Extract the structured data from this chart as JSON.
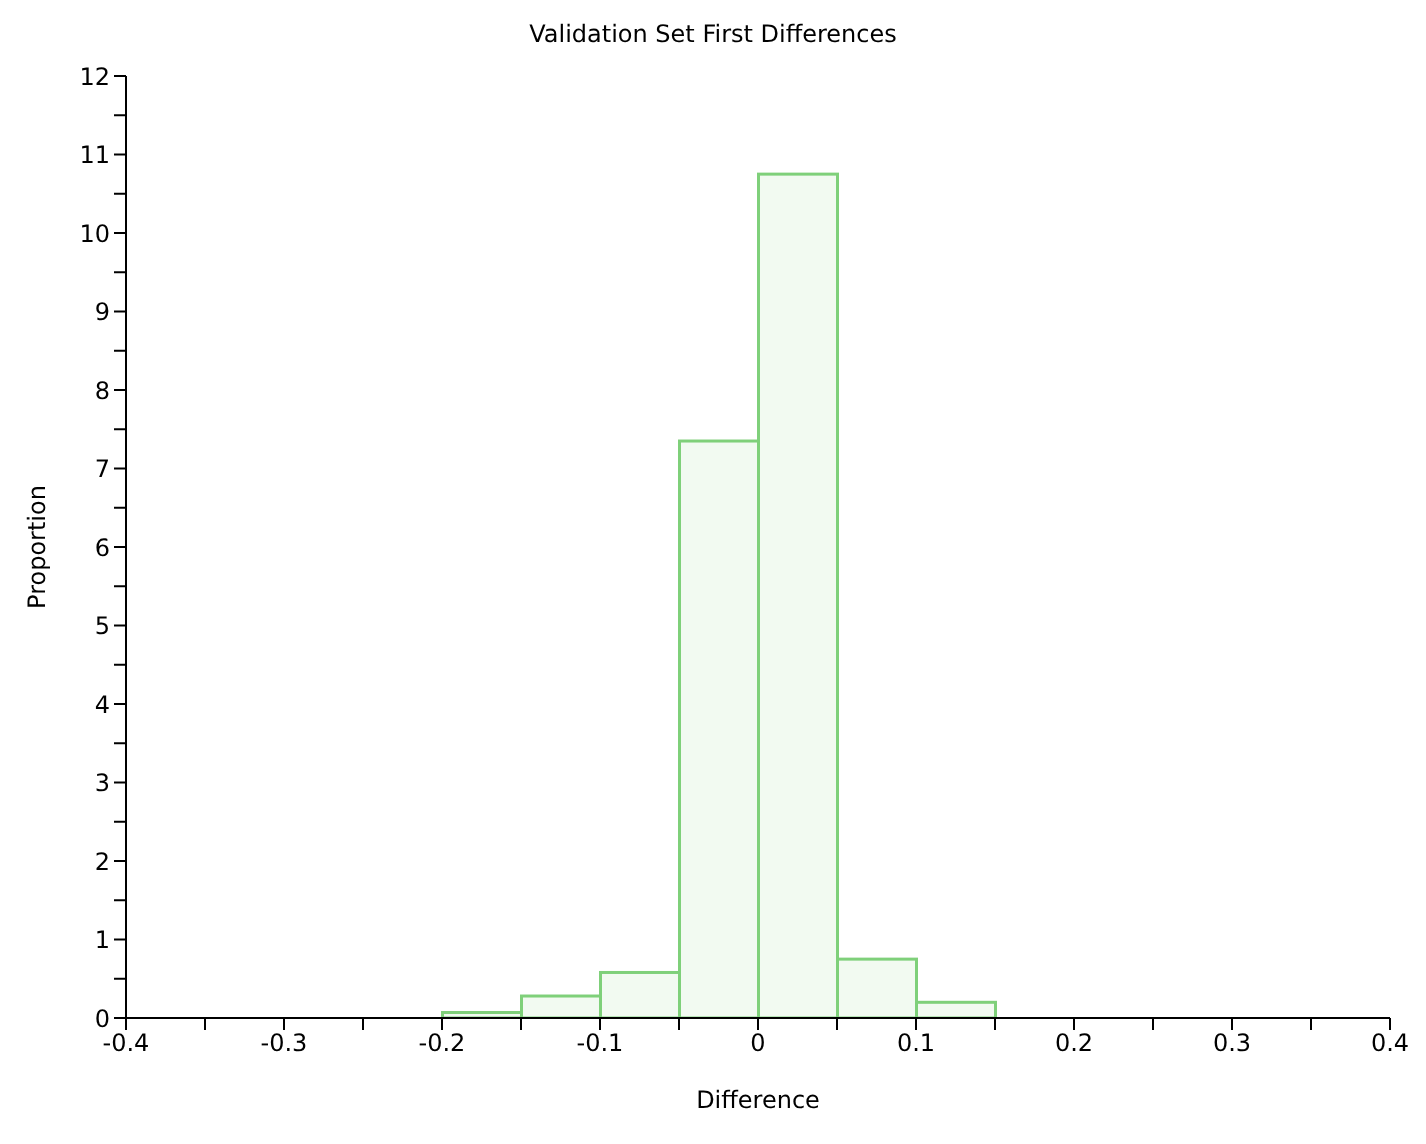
{
  "chart_data": {
    "type": "histogram",
    "title": "Validation Set First Differences",
    "xlabel": "Difference",
    "ylabel": "Proportion",
    "bins": [
      -0.2,
      -0.15,
      -0.1,
      -0.05,
      0,
      0.05,
      0.1,
      0.15
    ],
    "values": [
      0.07,
      0.28,
      0.58,
      7.35,
      10.75,
      0.75,
      0.2
    ],
    "color": "#7fd07a",
    "xlim": [
      -0.4,
      0.4
    ],
    "xticks": [
      -0.4,
      {
        "value": -0.35,
        "label": null
      },
      -0.3,
      {
        "value": -0.25,
        "label": null
      },
      -0.2,
      {
        "value": -0.15,
        "label": null
      },
      -0.1,
      {
        "value": -0.05,
        "label": null
      },
      0,
      {
        "value": 0.05,
        "label": null
      },
      0.1,
      {
        "value": 0.15,
        "label": null
      },
      0.2,
      {
        "value": 0.25,
        "label": null
      },
      0.3,
      {
        "value": 0.35,
        "label": null
      },
      0.4
    ],
    "ylim": [
      0,
      12
    ],
    "yticks": [
      0,
      {
        "value": 0.5,
        "label": null
      },
      1,
      {
        "value": 1.5,
        "label": null
      },
      2,
      {
        "value": 2.5,
        "label": null
      },
      3,
      {
        "value": 3.5,
        "label": null
      },
      4,
      {
        "value": 4.5,
        "label": null
      },
      5,
      {
        "value": 5.5,
        "label": null
      },
      6,
      {
        "value": 6.5,
        "label": null
      },
      7,
      {
        "value": 7.5,
        "label": null
      },
      8,
      {
        "value": 8.5,
        "label": null
      },
      9,
      {
        "value": 9.5,
        "label": null
      },
      10,
      {
        "value": 10.5,
        "label": null
      },
      11,
      {
        "value": 11.5,
        "label": null
      },
      12
    ],
    "grid": false
  }
}
